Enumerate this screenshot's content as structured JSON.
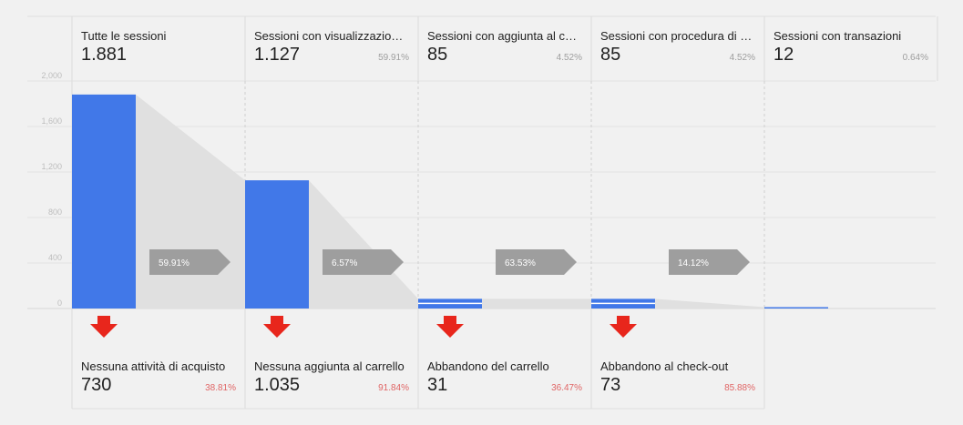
{
  "chart_data": {
    "type": "bar",
    "ylim": [
      0,
      2000
    ],
    "yticks": [
      "2,000",
      "1,600",
      "1,200",
      "800",
      "400",
      "0"
    ],
    "ytick_values": [
      2000,
      1600,
      1200,
      800,
      400,
      0
    ],
    "bar_color": "#4178e8",
    "drop_color": "#e8261c",
    "stages": [
      {
        "name": "Tutte le sessioni",
        "display": "1.881",
        "value": 1881,
        "pct": ""
      },
      {
        "name": "Sessioni con visualizzazioni…",
        "display": "1.127",
        "value": 1127,
        "pct": "59.91%"
      },
      {
        "name": "Sessioni con aggiunta al ca…",
        "display": "85",
        "value": 85,
        "pct": "4.52%"
      },
      {
        "name": "Sessioni con procedura di p…",
        "display": "85",
        "value": 85,
        "pct": "4.52%"
      },
      {
        "name": "Sessioni con transazioni",
        "display": "12",
        "value": 12,
        "pct": "0.64%"
      }
    ],
    "conversions": [
      "59.91%",
      "6.57%",
      "63.53%",
      "14.12%"
    ],
    "abandonments": [
      {
        "name": "Nessuna attività di acquisto",
        "display": "730",
        "pct": "38.81%"
      },
      {
        "name": "Nessuna aggiunta al carrello",
        "display": "1.035",
        "pct": "91.84%"
      },
      {
        "name": "Abbandono del carrello",
        "display": "31",
        "pct": "36.47%"
      },
      {
        "name": "Abbandono al check-out",
        "display": "73",
        "pct": "85.88%"
      }
    ]
  }
}
